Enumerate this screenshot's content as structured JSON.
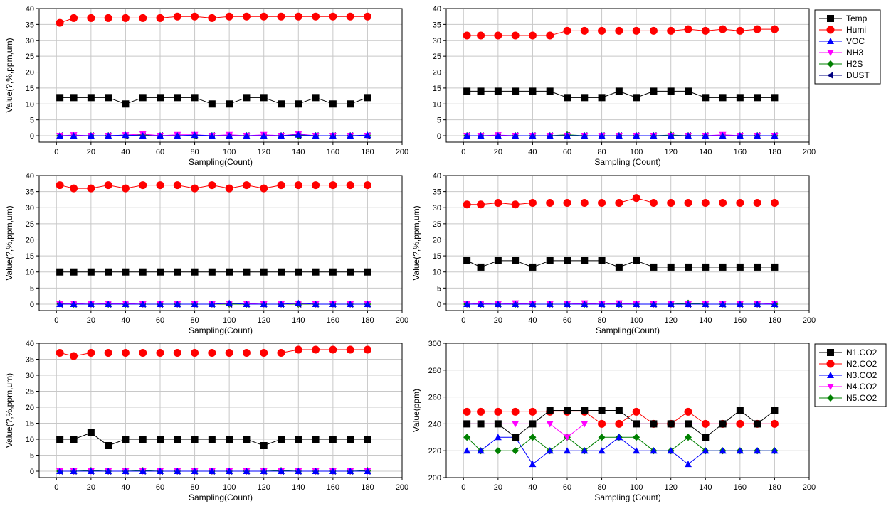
{
  "legend_sensors": [
    "Temp",
    "Humi",
    "VOC",
    "NH3",
    "H2S",
    "DUST"
  ],
  "legend_co2": [
    "N1.CO2",
    "N2.CO2",
    "N3.CO2",
    "N4.CO2",
    "N5.CO2"
  ],
  "colors": {
    "Temp": "#000000",
    "Humi": "#ff0000",
    "VOC": "#0000ff",
    "NH3": "#ff00ff",
    "H2S": "#008000",
    "DUST": "#000080",
    "N1.CO2": "#000000",
    "N2.CO2": "#ff0000",
    "N3.CO2": "#0000ff",
    "N4.CO2": "#ff00ff",
    "N5.CO2": "#008000"
  },
  "chart_data": [
    {
      "type": "line",
      "xlabel": "Sampling(Count)",
      "ylabel": "Value(?,%,ppm,um)",
      "xlim": [
        -10,
        200
      ],
      "ylim": [
        -2,
        40
      ],
      "xticks": [
        "0",
        "20",
        "40",
        "60",
        "80",
        "100",
        "120",
        "140",
        "160",
        "180",
        "200"
      ],
      "yticks": [
        "0",
        "5",
        "10",
        "15",
        "20",
        "25",
        "30",
        "35",
        "40"
      ],
      "grid": true,
      "x": [
        2,
        10,
        20,
        30,
        40,
        50,
        60,
        70,
        80,
        90,
        100,
        110,
        120,
        130,
        140,
        150,
        160,
        170,
        180
      ],
      "series": [
        {
          "name": "Humi",
          "values": [
            35.5,
            37,
            37,
            37,
            37,
            37,
            37,
            37.5,
            37.5,
            37,
            37.5,
            37.5,
            37.5,
            37.5,
            37.5,
            37.5,
            37.5,
            37.5,
            37.5
          ]
        },
        {
          "name": "Temp",
          "values": [
            12,
            12,
            12,
            12,
            10,
            12,
            12,
            12,
            12,
            10,
            10,
            12,
            12,
            10,
            10,
            12,
            10,
            10,
            12
          ]
        },
        {
          "name": "VOC",
          "values": [
            0,
            0,
            0,
            0,
            0.2,
            0,
            0,
            0,
            0.2,
            0,
            0,
            0,
            0,
            0,
            0.3,
            0,
            0,
            0,
            0.2
          ]
        },
        {
          "name": "NH3",
          "values": [
            0,
            0.2,
            0,
            0,
            0.2,
            0.5,
            0,
            0.3,
            0.3,
            0,
            0.3,
            0,
            0.3,
            0,
            0.5,
            0,
            0,
            0,
            0
          ]
        },
        {
          "name": "H2S",
          "values": [
            0,
            0,
            0,
            0,
            0,
            0.3,
            0,
            0,
            0,
            0,
            0,
            0,
            0,
            0,
            0,
            0,
            0,
            0,
            0
          ]
        },
        {
          "name": "DUST",
          "values": [
            0,
            0,
            0,
            0,
            0,
            0,
            0,
            0,
            0,
            0,
            0,
            0,
            0,
            0,
            0,
            0,
            0,
            0,
            0
          ]
        }
      ]
    },
    {
      "type": "line",
      "xlabel": "Sampling (Count)",
      "ylabel": "",
      "xlim": [
        -10,
        200
      ],
      "ylim": [
        -2,
        40
      ],
      "xticks": [
        "0",
        "20",
        "40",
        "60",
        "80",
        "100",
        "120",
        "140",
        "160",
        "180",
        "200"
      ],
      "yticks": [
        "0",
        "5",
        "10",
        "15",
        "20",
        "25",
        "30",
        "35",
        "40"
      ],
      "grid": true,
      "legend": "right",
      "x": [
        2,
        10,
        20,
        30,
        40,
        50,
        60,
        70,
        80,
        90,
        100,
        110,
        120,
        130,
        140,
        150,
        160,
        170,
        180
      ],
      "series": [
        {
          "name": "Humi",
          "values": [
            31.5,
            31.5,
            31.5,
            31.5,
            31.5,
            31.5,
            33,
            33,
            33,
            33,
            33,
            33,
            33,
            33.5,
            33,
            33.5,
            33,
            33.5,
            33.5
          ]
        },
        {
          "name": "Temp",
          "values": [
            14,
            14,
            14,
            14,
            14,
            14,
            12,
            12,
            12,
            14,
            12,
            14,
            14,
            14,
            12,
            12,
            12,
            12,
            12
          ]
        },
        {
          "name": "VOC",
          "values": [
            0,
            0,
            0,
            0,
            0,
            0,
            0,
            0,
            0,
            0,
            0,
            0,
            0,
            0,
            0,
            0,
            0,
            0,
            0
          ]
        },
        {
          "name": "NH3",
          "values": [
            0,
            0,
            0.2,
            0,
            0,
            0,
            0,
            0,
            0,
            0,
            0,
            0,
            0,
            0,
            0,
            0.3,
            0,
            0,
            0
          ]
        },
        {
          "name": "H2S",
          "values": [
            0,
            0,
            0,
            0,
            0,
            0,
            0.3,
            0,
            0,
            0,
            0,
            0,
            0.2,
            0,
            0,
            0,
            0,
            0,
            0
          ]
        },
        {
          "name": "DUST",
          "values": [
            0,
            0,
            0,
            0,
            0,
            0,
            0,
            0,
            0,
            0,
            0,
            0,
            0,
            0,
            0,
            0,
            0,
            0,
            0
          ]
        }
      ]
    },
    {
      "type": "line",
      "xlabel": "Sampling(Count)",
      "ylabel": "Value(?,%,ppm,um)",
      "xlim": [
        -10,
        200
      ],
      "ylim": [
        -2,
        40
      ],
      "xticks": [
        "0",
        "20",
        "40",
        "60",
        "80",
        "100",
        "120",
        "140",
        "160",
        "180",
        "200"
      ],
      "yticks": [
        "0",
        "5",
        "10",
        "15",
        "20",
        "25",
        "30",
        "35",
        "40"
      ],
      "grid": true,
      "x": [
        2,
        10,
        20,
        30,
        40,
        50,
        60,
        70,
        80,
        90,
        100,
        110,
        120,
        130,
        140,
        150,
        160,
        170,
        180
      ],
      "series": [
        {
          "name": "Humi",
          "values": [
            37,
            36,
            36,
            37,
            36,
            37,
            37,
            37,
            36,
            37,
            36,
            37,
            36,
            37,
            37,
            37,
            37,
            37,
            37
          ]
        },
        {
          "name": "Temp",
          "values": [
            10,
            10,
            10,
            10,
            10,
            10,
            10,
            10,
            10,
            10,
            10,
            10,
            10,
            10,
            10,
            10,
            10,
            10,
            10
          ]
        },
        {
          "name": "VOC",
          "values": [
            0,
            0,
            0,
            0,
            0,
            0,
            0,
            0,
            0,
            0,
            0.3,
            0,
            0,
            0,
            0.3,
            0,
            0,
            0,
            0
          ]
        },
        {
          "name": "NH3",
          "values": [
            0,
            0.2,
            0,
            0.2,
            0.2,
            0,
            0,
            0,
            0,
            0,
            0.2,
            0.2,
            0,
            0,
            0.2,
            0,
            0,
            0,
            0
          ]
        },
        {
          "name": "H2S",
          "values": [
            0.3,
            0,
            0,
            0,
            0,
            0,
            0,
            0,
            0,
            0,
            0,
            0,
            0,
            0,
            0,
            0,
            0,
            0,
            0
          ]
        },
        {
          "name": "DUST",
          "values": [
            0,
            0,
            0,
            0,
            0,
            0,
            0,
            0,
            0,
            0,
            0,
            0,
            0,
            0,
            0,
            0,
            0,
            0,
            0
          ]
        }
      ]
    },
    {
      "type": "line",
      "xlabel": "Sampling(Count)",
      "ylabel": "Value(?,%,ppm,um)",
      "xlim": [
        -10,
        200
      ],
      "ylim": [
        -2,
        40
      ],
      "xticks": [
        "0",
        "20",
        "40",
        "60",
        "80",
        "100",
        "120",
        "140",
        "160",
        "180",
        "200"
      ],
      "yticks": [
        "0",
        "5",
        "10",
        "15",
        "20",
        "25",
        "30",
        "35",
        "40"
      ],
      "grid": true,
      "x": [
        2,
        10,
        20,
        30,
        40,
        50,
        60,
        70,
        80,
        90,
        100,
        110,
        120,
        130,
        140,
        150,
        160,
        170,
        180
      ],
      "series": [
        {
          "name": "Humi",
          "values": [
            31,
            31,
            31.5,
            31,
            31.5,
            31.5,
            31.5,
            31.5,
            31.5,
            31.5,
            33,
            31.5,
            31.5,
            31.5,
            31.5,
            31.5,
            31.5,
            31.5,
            31.5
          ]
        },
        {
          "name": "Temp",
          "values": [
            13.5,
            11.5,
            13.5,
            13.5,
            11.5,
            13.5,
            13.5,
            13.5,
            13.5,
            11.5,
            13.5,
            11.5,
            11.5,
            11.5,
            11.5,
            11.5,
            11.5,
            11.5,
            11.5
          ]
        },
        {
          "name": "VOC",
          "values": [
            0,
            0,
            0,
            0,
            0,
            0,
            0,
            0,
            0,
            0,
            0,
            0,
            0,
            0,
            0,
            0,
            0,
            0,
            0
          ]
        },
        {
          "name": "NH3",
          "values": [
            0,
            0.2,
            0,
            0.3,
            0,
            0,
            0,
            0.3,
            0,
            0.3,
            0,
            0,
            0,
            0,
            0,
            0,
            0,
            0,
            0.2
          ]
        },
        {
          "name": "H2S",
          "values": [
            0,
            0,
            0,
            0,
            0,
            0,
            0,
            0,
            0,
            0,
            0,
            0,
            0,
            0.3,
            0,
            0,
            0,
            0,
            0
          ]
        },
        {
          "name": "DUST",
          "values": [
            0,
            0,
            0,
            0,
            0,
            0,
            0,
            0,
            0,
            0,
            0,
            0,
            0,
            0,
            0,
            0,
            0,
            0,
            0
          ]
        }
      ]
    },
    {
      "type": "line",
      "xlabel": "Sampling(Count)",
      "ylabel": "Value(?,%,ppm,um)",
      "xlim": [
        -10,
        200
      ],
      "ylim": [
        -2,
        40
      ],
      "xticks": [
        "0",
        "20",
        "40",
        "60",
        "80",
        "100",
        "120",
        "140",
        "160",
        "180",
        "200"
      ],
      "yticks": [
        "0",
        "5",
        "10",
        "15",
        "20",
        "25",
        "30",
        "35",
        "40"
      ],
      "grid": true,
      "x": [
        2,
        10,
        20,
        30,
        40,
        50,
        60,
        70,
        80,
        90,
        100,
        110,
        120,
        130,
        140,
        150,
        160,
        170,
        180
      ],
      "series": [
        {
          "name": "Humi",
          "values": [
            37,
            36,
            37,
            37,
            37,
            37,
            37,
            37,
            37,
            37,
            37,
            37,
            37,
            37,
            38,
            38,
            38,
            38,
            38
          ]
        },
        {
          "name": "Temp",
          "values": [
            10,
            10,
            12,
            8,
            10,
            10,
            10,
            10,
            10,
            10,
            10,
            10,
            8,
            10,
            10,
            10,
            10,
            10,
            10
          ]
        },
        {
          "name": "VOC",
          "values": [
            0,
            0,
            0,
            0,
            0,
            0,
            0,
            0,
            0,
            0,
            0,
            0,
            0,
            0,
            0,
            0,
            0,
            0,
            0
          ]
        },
        {
          "name": "NH3",
          "values": [
            0,
            0,
            0,
            0,
            0,
            0,
            0,
            0,
            0,
            0,
            0,
            0,
            0,
            0,
            0,
            0,
            0,
            0,
            0
          ]
        },
        {
          "name": "H2S",
          "values": [
            0,
            0,
            0.2,
            0,
            0,
            0.2,
            0,
            0,
            0,
            0,
            0,
            0,
            0,
            0.2,
            0,
            0,
            0,
            0,
            0.2
          ]
        },
        {
          "name": "DUST",
          "values": [
            0,
            0,
            0,
            0,
            0,
            0,
            0,
            0,
            0,
            0,
            0,
            0,
            0,
            0,
            0,
            0,
            0,
            0,
            0
          ]
        }
      ]
    },
    {
      "type": "line",
      "xlabel": "Sampling (Count)",
      "ylabel": "Value(ppm)",
      "xlim": [
        -10,
        200
      ],
      "ylim": [
        200,
        300
      ],
      "xticks": [
        "0",
        "20",
        "40",
        "60",
        "80",
        "100",
        "120",
        "140",
        "160",
        "180",
        "200"
      ],
      "yticks": [
        "200",
        "220",
        "240",
        "260",
        "280",
        "300"
      ],
      "grid": true,
      "legend": "right",
      "x": [
        2,
        10,
        20,
        30,
        40,
        50,
        60,
        70,
        80,
        90,
        100,
        110,
        120,
        130,
        140,
        150,
        160,
        170,
        180
      ],
      "series": [
        {
          "name": "N1.CO2",
          "values": [
            240,
            240,
            240,
            230,
            240,
            250,
            250,
            250,
            250,
            250,
            240,
            240,
            240,
            240,
            230,
            240,
            250,
            240,
            250
          ]
        },
        {
          "name": "N2.CO2",
          "values": [
            249,
            249,
            249,
            249,
            249,
            249,
            249,
            249,
            240,
            240,
            249,
            240,
            240,
            249,
            240,
            240,
            240,
            240,
            240
          ]
        },
        {
          "name": "N3.CO2",
          "values": [
            220,
            220,
            230,
            230,
            210,
            220,
            220,
            220,
            220,
            230,
            220,
            220,
            220,
            210,
            220,
            220,
            220,
            220,
            220
          ]
        },
        {
          "name": "N4.CO2",
          "values": [
            240,
            240,
            240,
            240,
            240,
            240,
            230,
            240,
            240,
            240,
            240,
            240,
            240,
            240,
            240,
            240,
            240,
            240,
            240
          ]
        },
        {
          "name": "N5.CO2",
          "values": [
            230,
            220,
            220,
            220,
            230,
            220,
            230,
            220,
            230,
            230,
            230,
            220,
            220,
            230,
            220,
            220,
            220,
            220,
            220
          ]
        }
      ]
    }
  ]
}
